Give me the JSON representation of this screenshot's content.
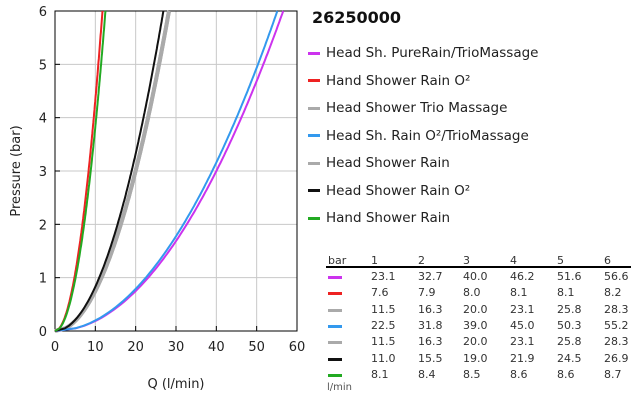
{
  "chart_data": {
    "type": "line",
    "title": "26250000",
    "xlabel": "Q (l/min)",
    "ylabel": "Pressure (bar)",
    "xlim": [
      0,
      60
    ],
    "ylim": [
      0,
      6
    ],
    "x_ticks": [
      0,
      10,
      20,
      30,
      40,
      50,
      60
    ],
    "y_ticks": [
      0,
      1,
      2,
      3,
      4,
      5,
      6
    ],
    "grid": true,
    "legend_position": "right",
    "series": [
      {
        "name": "Head Sh. PureRain/TrioMassage",
        "color": "#cc33ee",
        "pressure": [
          1,
          2,
          3,
          4,
          5,
          6
        ],
        "flow": [
          23.1,
          32.7,
          40.0,
          46.2,
          51.6,
          56.6
        ]
      },
      {
        "name": "Hand Shower Rain O²",
        "color": "#ee2222",
        "pressure": [
          1,
          2,
          3,
          4,
          5,
          6
        ],
        "flow": [
          7.6,
          7.9,
          8.0,
          8.1,
          8.1,
          8.2
        ]
      },
      {
        "name": "Head Shower Trio Massage",
        "color": "#aaaaaa",
        "pressure": [
          1,
          2,
          3,
          4,
          5,
          6
        ],
        "flow": [
          11.5,
          16.3,
          20.0,
          23.1,
          25.8,
          28.3
        ]
      },
      {
        "name": "Head Sh. Rain O²/TrioMassage",
        "color": "#3399ee",
        "pressure": [
          1,
          2,
          3,
          4,
          5,
          6
        ],
        "flow": [
          22.5,
          31.8,
          39.0,
          45.0,
          50.3,
          55.2
        ]
      },
      {
        "name": "Head Shower Rain",
        "color": "#aaaaaa",
        "pressure": [
          1,
          2,
          3,
          4,
          5,
          6
        ],
        "flow": [
          11.5,
          16.3,
          20.0,
          23.1,
          25.8,
          28.3
        ]
      },
      {
        "name": "Head Shower Rain O²",
        "color": "#111111",
        "pressure": [
          1,
          2,
          3,
          4,
          5,
          6
        ],
        "flow": [
          11.0,
          15.5,
          19.0,
          21.9,
          24.5,
          26.9
        ]
      },
      {
        "name": "Hand Shower Rain",
        "color": "#22aa22",
        "pressure": [
          1,
          2,
          3,
          4,
          5,
          6
        ],
        "flow": [
          8.1,
          8.4,
          8.5,
          8.6,
          8.6,
          8.7
        ]
      }
    ]
  },
  "table": {
    "header_unit": "bar",
    "footer_unit": "l/min",
    "columns": [
      "1",
      "2",
      "3",
      "4",
      "5",
      "6"
    ],
    "rows": [
      [
        "23.1",
        "32.7",
        "40.0",
        "46.2",
        "51.6",
        "56.6"
      ],
      [
        "7.6",
        "7.9",
        "8.0",
        "8.1",
        "8.1",
        "8.2"
      ],
      [
        "11.5",
        "16.3",
        "20.0",
        "23.1",
        "25.8",
        "28.3"
      ],
      [
        "22.5",
        "31.8",
        "39.0",
        "45.0",
        "50.3",
        "55.2"
      ],
      [
        "11.5",
        "16.3",
        "20.0",
        "23.1",
        "25.8",
        "28.3"
      ],
      [
        "11.0",
        "15.5",
        "19.0",
        "21.9",
        "24.5",
        "26.9"
      ],
      [
        "8.1",
        "8.4",
        "8.5",
        "8.6",
        "8.6",
        "8.7"
      ]
    ]
  }
}
